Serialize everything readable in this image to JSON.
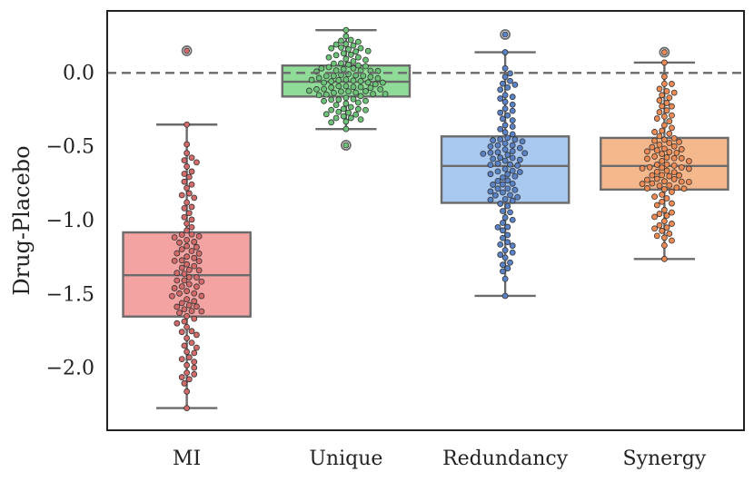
{
  "chart_data": {
    "type": "box",
    "title": "",
    "xlabel": "",
    "ylabel": "Drug-Placebo",
    "ylim": [
      -2.42,
      0.42
    ],
    "yticks": [
      {
        "value": 0.0,
        "label": "0.0"
      },
      {
        "value": -0.5,
        "label": "−0.5"
      },
      {
        "value": -1.0,
        "label": "−1.0"
      },
      {
        "value": -1.5,
        "label": "−1.5"
      },
      {
        "value": -2.0,
        "label": "−2.0"
      }
    ],
    "reference_line": {
      "y": 0.0,
      "style": "dashed"
    },
    "grid": false,
    "series": [
      {
        "category": "MI",
        "fill": "#f4a3a3",
        "point_color": "#d26a6a",
        "q1": -1.65,
        "median": -1.37,
        "q3": -1.08,
        "whisker_low": -2.27,
        "whisker_high": -0.35,
        "outliers": [
          0.15
        ],
        "n_points": 100
      },
      {
        "category": "Unique",
        "fill": "#8fdb98",
        "point_color": "#6cc277",
        "q1": -0.16,
        "median": -0.06,
        "q3": 0.05,
        "whisker_low": -0.38,
        "whisker_high": 0.29,
        "outliers": [
          -0.49
        ],
        "n_points": 100
      },
      {
        "category": "Redundancy",
        "fill": "#a8c8ef",
        "point_color": "#5a82c6",
        "q1": -0.88,
        "median": -0.63,
        "q3": -0.43,
        "whisker_low": -1.51,
        "whisker_high": 0.14,
        "outliers": [
          0.26
        ],
        "n_points": 100
      },
      {
        "category": "Synergy",
        "fill": "#f5b88c",
        "point_color": "#ee8a53",
        "q1": -0.79,
        "median": -0.63,
        "q3": -0.44,
        "whisker_low": -1.26,
        "whisker_high": 0.07,
        "outliers": [
          0.14
        ],
        "n_points": 100
      }
    ]
  }
}
